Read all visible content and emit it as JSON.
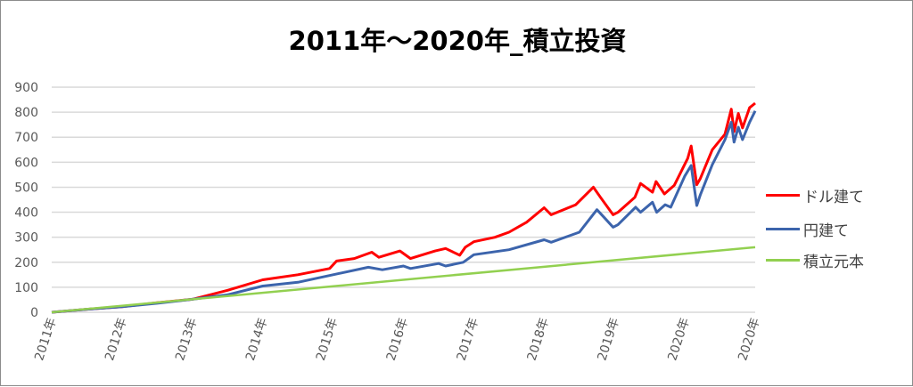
{
  "chart_data": {
    "type": "line",
    "title": "2011年～2020年_積立投資",
    "xlabel": "",
    "ylabel": "",
    "ylim": [
      0,
      900
    ],
    "xlim": [
      2011,
      2021
    ],
    "yticks": [
      "0",
      "100",
      "200",
      "300",
      "400",
      "500",
      "600",
      "700",
      "800",
      "900"
    ],
    "xtick_labels": [
      "2011年",
      "2012年",
      "2013年",
      "2014年",
      "2015年",
      "2016年",
      "2017年",
      "2018年",
      "2019年",
      "2020年",
      "2020年"
    ],
    "grid": true,
    "legend_position": "right",
    "series": [
      {
        "name": "ドル建て",
        "color": "#ff0000",
        "x": [
          2011,
          2011.5,
          2012,
          2012.5,
          2013,
          2013.5,
          2014,
          2014.5,
          2014.95,
          2015.05,
          2015.3,
          2015.55,
          2015.65,
          2015.95,
          2016.1,
          2016.45,
          2016.6,
          2016.8,
          2016.88,
          2017,
          2017.3,
          2017.5,
          2017.75,
          2018,
          2018.1,
          2018.45,
          2018.7,
          2018.8,
          2018.98,
          2019.05,
          2019.29,
          2019.37,
          2019.54,
          2019.59,
          2019.71,
          2019.85,
          2020.04,
          2020.09,
          2020.17,
          2020.22,
          2020.39,
          2020.57,
          2020.66,
          2020.7,
          2020.76,
          2020.82,
          2020.92,
          2021
        ],
        "y": [
          0,
          12,
          22,
          38,
          52,
          88,
          130,
          150,
          175,
          205,
          215,
          240,
          220,
          245,
          215,
          245,
          255,
          228,
          260,
          282,
          300,
          320,
          360,
          418,
          390,
          430,
          500,
          460,
          390,
          400,
          460,
          515,
          480,
          523,
          473,
          508,
          615,
          665,
          510,
          535,
          650,
          712,
          812,
          722,
          795,
          737,
          818,
          836
        ]
      },
      {
        "name": "円建て",
        "color": "#3c64ac",
        "x": [
          2011,
          2011.5,
          2012,
          2012.5,
          2013,
          2013.5,
          2014,
          2014.5,
          2015,
          2015.5,
          2015.7,
          2016,
          2016.1,
          2016.5,
          2016.6,
          2016.85,
          2017,
          2017.5,
          2018,
          2018.1,
          2018.5,
          2018.75,
          2018.85,
          2018.98,
          2019.05,
          2019.3,
          2019.37,
          2019.54,
          2019.6,
          2019.72,
          2019.8,
          2020,
          2020.09,
          2020.17,
          2020.22,
          2020.39,
          2020.57,
          2020.66,
          2020.7,
          2020.76,
          2020.82,
          2020.92,
          2021
        ],
        "y": [
          0,
          12,
          22,
          36,
          52,
          70,
          105,
          120,
          150,
          180,
          170,
          185,
          175,
          195,
          185,
          200,
          230,
          250,
          290,
          280,
          320,
          410,
          380,
          340,
          350,
          420,
          400,
          440,
          400,
          430,
          420,
          545,
          587,
          427,
          470,
          590,
          690,
          760,
          680,
          740,
          690,
          760,
          805
        ]
      },
      {
        "name": "積立元本",
        "color": "#92d050",
        "x": [
          2011,
          2021
        ],
        "y": [
          0,
          260
        ]
      }
    ]
  }
}
